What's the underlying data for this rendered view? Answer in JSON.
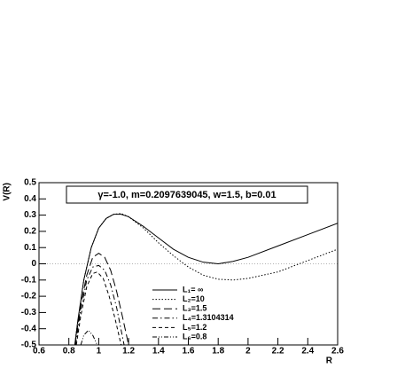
{
  "chart_data": {
    "type": "line",
    "title": "γ=-1.0, m=0.2097639045, w=1.5, b=0.01",
    "x_label": "R",
    "y_label": "V(R)",
    "xlim": [
      0.6,
      2.6
    ],
    "xticks": [
      0.6,
      0.8,
      1,
      1.2,
      1.4,
      1.6,
      1.8,
      2,
      2.2,
      2.4,
      2.6
    ],
    "ylim": [
      -0.5,
      0.5
    ],
    "yticks": [
      -0.5,
      -0.4,
      -0.3,
      -0.2,
      -0.1,
      0,
      0.1,
      0.2,
      0.3,
      0.4,
      0.5
    ],
    "zero_line": true,
    "legend": "lower center",
    "series": [
      {
        "name": "L₁= ∞",
        "color": "#000000",
        "dash": "solid",
        "x": [
          0.84,
          0.86,
          0.9,
          0.95,
          1.0,
          1.05,
          1.1,
          1.15,
          1.2,
          1.3,
          1.4,
          1.5,
          1.6,
          1.7,
          1.8,
          1.9,
          2.0,
          2.2,
          2.4,
          2.6
        ],
        "values": [
          -0.5,
          -0.35,
          -0.1,
          0.1,
          0.22,
          0.28,
          0.305,
          0.305,
          0.29,
          0.23,
          0.16,
          0.09,
          0.04,
          0.01,
          0.0,
          0.015,
          0.04,
          0.11,
          0.18,
          0.25
        ]
      },
      {
        "name": "L₂=10",
        "color": "#000000",
        "dash": "dotted",
        "x": [
          0.84,
          0.86,
          0.9,
          0.95,
          1.0,
          1.05,
          1.1,
          1.15,
          1.2,
          1.3,
          1.4,
          1.5,
          1.6,
          1.7,
          1.8,
          1.9,
          2.0,
          2.2,
          2.4,
          2.6
        ],
        "values": [
          -0.5,
          -0.35,
          -0.1,
          0.1,
          0.22,
          0.28,
          0.305,
          0.31,
          0.29,
          0.22,
          0.13,
          0.05,
          -0.02,
          -0.07,
          -0.095,
          -0.1,
          -0.09,
          -0.05,
          0.02,
          0.09
        ]
      },
      {
        "name": "L₃=1.5",
        "color": "#000000",
        "dash": "longdash",
        "x": [
          0.84,
          0.88,
          0.92,
          0.96,
          1.0,
          1.04,
          1.08,
          1.12,
          1.16,
          1.2
        ],
        "values": [
          -0.5,
          -0.25,
          -0.07,
          0.04,
          0.065,
          0.04,
          -0.04,
          -0.17,
          -0.33,
          -0.5
        ]
      },
      {
        "name": "L₄=1.3104314",
        "color": "#000000",
        "dash": "dashdot",
        "x": [
          0.845,
          0.88,
          0.92,
          0.96,
          1.0,
          1.04,
          1.08,
          1.12,
          1.17
        ],
        "values": [
          -0.5,
          -0.28,
          -0.1,
          -0.02,
          -0.01,
          -0.04,
          -0.13,
          -0.27,
          -0.5
        ]
      },
      {
        "name": "L₅=1.2",
        "color": "#000000",
        "dash": "dashed",
        "x": [
          0.85,
          0.88,
          0.92,
          0.96,
          0.99,
          1.03,
          1.07,
          1.11,
          1.15
        ],
        "values": [
          -0.5,
          -0.32,
          -0.14,
          -0.06,
          -0.05,
          -0.09,
          -0.2,
          -0.34,
          -0.5
        ]
      },
      {
        "name": "L₆=0.8",
        "color": "#000000",
        "dash": "dashdotdot",
        "x": [
          0.88,
          0.9,
          0.93,
          0.96,
          0.99
        ],
        "values": [
          -0.5,
          -0.44,
          -0.41,
          -0.44,
          -0.5
        ]
      }
    ]
  }
}
